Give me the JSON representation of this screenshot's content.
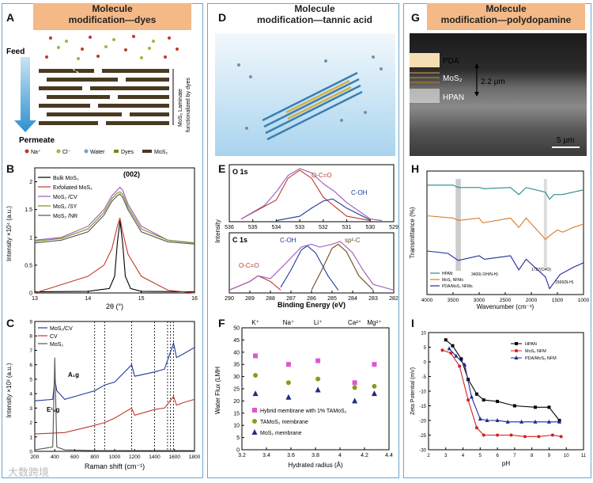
{
  "panels": {
    "A": {
      "letter": "A",
      "title_1": "Molecule",
      "title_2": "modification—dyes",
      "feed": "Feed",
      "permeate": "Permeate",
      "laminate_label_1": "MoS₂ Laminate",
      "laminate_label_2": "functionalized by dyes",
      "legend": [
        "Na⁺",
        "Cl⁻",
        "Water",
        "Dyes",
        "MoS₂"
      ]
    },
    "B": {
      "letter": "B",
      "peak_label": "(002)",
      "ylabel": "Intensity ×10⁴ (a.u.)",
      "xlabel": "2θ (°)",
      "legend": [
        "Bulk MoS₂",
        "Exfoliated MoS₂",
        "MoS₂ /CV",
        "MoS₂ /SY",
        "MoS₂ /NR"
      ]
    },
    "C": {
      "letter": "C",
      "ylabel": "Intensity ×10³ (a.u.)",
      "xlabel": "Raman shift (cm⁻¹)",
      "legend": [
        "MoS₂/CV",
        "CV",
        "MoS₂"
      ],
      "peak1": "E¹₂g",
      "peak2": "A₁g"
    },
    "D": {
      "letter": "D",
      "title_1": "Molecule",
      "title_2": "modification—tannic acid"
    },
    "E": {
      "letter": "E",
      "o1s": "O 1s",
      "c1s": "C 1s",
      "oco": "O-C=O",
      "coh": "C-OH",
      "coh2": "C-OH",
      "sp2": "sp²-C",
      "oco2": "O-C=O",
      "ylabel": "Intensity",
      "xlabel": "Binding Energy (eV)"
    },
    "F": {
      "letter": "F",
      "ylabel": "Water Flux (LMH",
      "xlabel": "Hydrated radius (Å)",
      "ions": [
        "K⁺",
        "Na⁺",
        "Li⁺",
        "Ca²⁺",
        "Mg²⁺"
      ],
      "legend": [
        "Hybrid membrane with 1% TAMoS₂",
        "TAMoS₂ membrane",
        "MoS₂ membrane"
      ]
    },
    "G": {
      "letter": "G",
      "title_1": "Molecule",
      "title_2": "modification—polydopamine",
      "pda": "PDA",
      "mos2": "MoS₂",
      "hpan": "HPAN",
      "thickness": "2.2 μm",
      "scale": "5 μm"
    },
    "H": {
      "letter": "H",
      "ylabel": "Transmittance (%)",
      "xlabel": "Wavenumber (cm⁻¹)",
      "ann1": "3400(-OH/N-H)",
      "ann2": "1727(C=O)",
      "ann3": "1566(N-H)",
      "legend": [
        "HPAN",
        "MoS₂ NFMs",
        "PDA/MoS₂ NFMs"
      ]
    },
    "I": {
      "letter": "I",
      "ylabel": "Zeta Potential (mV)",
      "xlabel": "pH",
      "legend": [
        "HPAN",
        "MoS₂ NFM",
        "PDA/MoS₂ NFM"
      ]
    }
  },
  "watermark": "大数跨境",
  "colors": {
    "header": "#f4b987",
    "border": "#6aa6cf"
  },
  "chart_data": [
    {
      "id": "B",
      "type": "line",
      "xlabel": "2θ (°)",
      "ylabel": "Intensity ×10⁴ (a.u.)",
      "xlim": [
        13,
        16
      ],
      "ylim": [
        0,
        2.25
      ],
      "xticks": [
        13,
        14,
        15,
        16
      ],
      "yticks": [
        0,
        0.5,
        1.0,
        1.5,
        2.0
      ],
      "series": [
        {
          "name": "Bulk MoS₂",
          "color": "#000000",
          "x": [
            13,
            14,
            14.4,
            14.5,
            14.55,
            14.6,
            14.65,
            14.7,
            14.8,
            15,
            16
          ],
          "y": [
            0.02,
            0.03,
            0.08,
            0.3,
            0.9,
            1.3,
            0.9,
            0.3,
            0.08,
            0.03,
            0.02
          ]
        },
        {
          "name": "Exfoliated MoS₂",
          "color": "#c0392b",
          "x": [
            13,
            13.5,
            14,
            14.3,
            14.45,
            14.55,
            14.6,
            14.65,
            14.75,
            15,
            15.5,
            16
          ],
          "y": [
            0.0,
            0.15,
            0.3,
            0.5,
            0.8,
            1.2,
            1.35,
            1.1,
            0.7,
            0.3,
            0.05,
            0.0
          ]
        },
        {
          "name": "MoS₂ /CV",
          "color": "#9b59b6",
          "x": [
            13,
            13.5,
            14,
            14.3,
            14.45,
            14.55,
            14.6,
            14.65,
            14.75,
            15,
            15.5,
            16
          ],
          "y": [
            0.95,
            1.0,
            1.2,
            1.5,
            1.75,
            1.85,
            1.9,
            1.85,
            1.6,
            1.2,
            0.95,
            0.9
          ]
        },
        {
          "name": "MoS₂ /SY",
          "color": "#7f8c1a",
          "x": [
            13,
            13.5,
            14,
            14.3,
            14.45,
            14.55,
            14.6,
            14.65,
            14.75,
            15,
            15.5,
            16
          ],
          "y": [
            0.93,
            0.98,
            1.15,
            1.45,
            1.7,
            1.8,
            1.82,
            1.78,
            1.55,
            1.15,
            0.95,
            0.9
          ]
        },
        {
          "name": "MoS₂ /NR",
          "color": "#555555",
          "x": [
            13,
            13.5,
            14,
            14.3,
            14.45,
            14.55,
            14.6,
            14.65,
            14.75,
            15,
            15.5,
            16
          ],
          "y": [
            0.9,
            0.95,
            1.1,
            1.4,
            1.65,
            1.75,
            1.78,
            1.72,
            1.5,
            1.1,
            0.92,
            0.88
          ]
        }
      ]
    },
    {
      "id": "C",
      "type": "line",
      "xlabel": "Raman shift (cm⁻¹)",
      "ylabel": "Intensity ×10³ (a.u.)",
      "xlim": [
        200,
        1800
      ],
      "ylim": [
        0,
        9
      ],
      "xticks": [
        200,
        400,
        600,
        800,
        1000,
        1200,
        1400,
        1600,
        1800
      ],
      "yticks": [
        0,
        1,
        2,
        3,
        4,
        5,
        6,
        7,
        8,
        9
      ],
      "series": [
        {
          "name": "MoS₂/CV",
          "color": "#1f3b99",
          "x": [
            200,
            380,
            400,
            420,
            500,
            800,
            900,
            1000,
            1170,
            1200,
            1400,
            1500,
            1590,
            1620,
            1700,
            1800
          ],
          "y": [
            3.5,
            3.6,
            5.0,
            4.2,
            3.6,
            4.2,
            4.6,
            4.8,
            6.0,
            5.2,
            5.5,
            5.7,
            7.5,
            6.5,
            6.8,
            7.2
          ]
        },
        {
          "name": "CV",
          "color": "#c0392b",
          "x": [
            200,
            500,
            800,
            900,
            1000,
            1170,
            1200,
            1400,
            1500,
            1590,
            1620,
            1700,
            1800
          ],
          "y": [
            1.2,
            1.3,
            1.8,
            2.0,
            2.3,
            3.0,
            2.5,
            2.9,
            3.0,
            3.8,
            3.2,
            3.4,
            3.6
          ]
        },
        {
          "name": "MoS₂",
          "color": "#555555",
          "x": [
            200,
            380,
            400,
            420,
            500,
            800,
            1200,
            1800
          ],
          "y": [
            0.1,
            0.3,
            6.5,
            0.3,
            0.1,
            0.05,
            0.05,
            0.05
          ]
        }
      ]
    },
    {
      "id": "E-O1s",
      "type": "line",
      "xlim": [
        536,
        529
      ],
      "xticks": [
        536,
        535,
        534,
        533,
        532,
        531,
        530,
        529
      ],
      "series": [
        {
          "name": "O-C=O",
          "color": "#c0392b",
          "x": [
            535.5,
            534,
            533.5,
            533,
            532.5,
            532,
            531,
            530
          ],
          "y": [
            0.05,
            0.4,
            0.8,
            0.95,
            0.8,
            0.45,
            0.1,
            0.02
          ]
        },
        {
          "name": "C-OH",
          "color": "#1f3b99",
          "x": [
            534,
            533,
            532.5,
            532,
            531.6,
            531,
            530
          ],
          "y": [
            0.02,
            0.1,
            0.25,
            0.38,
            0.42,
            0.25,
            0.03
          ]
        },
        {
          "name": "Envelope",
          "color": "#9b59b6",
          "x": [
            535.5,
            534.5,
            534,
            533.5,
            533,
            532.5,
            532,
            531.5,
            531,
            530,
            529.5
          ],
          "y": [
            0.05,
            0.3,
            0.55,
            0.85,
            0.98,
            0.9,
            0.7,
            0.55,
            0.35,
            0.05,
            0.02
          ]
        }
      ]
    },
    {
      "id": "E-C1s",
      "type": "line",
      "xlabel": "Binding Energy (eV)",
      "xlim": [
        290,
        282
      ],
      "xticks": [
        290,
        289,
        288,
        287,
        286,
        285,
        284,
        283,
        282
      ],
      "series": [
        {
          "name": "O-C=O",
          "color": "#c0392b",
          "x": [
            290,
            289,
            288.6,
            288,
            287.5
          ],
          "y": [
            0.05,
            0.2,
            0.3,
            0.2,
            0.05
          ]
        },
        {
          "name": "C-OH",
          "color": "#1f3b99",
          "x": [
            287.5,
            287,
            286.5,
            286.2,
            285.8,
            285.2,
            284.7
          ],
          "y": [
            0.1,
            0.4,
            0.75,
            0.82,
            0.7,
            0.3,
            0.05
          ]
        },
        {
          "name": "sp²-C",
          "color": "#6e4b1a",
          "x": [
            286,
            285.5,
            285,
            284.7,
            284.3,
            283.7,
            283
          ],
          "y": [
            0.05,
            0.4,
            0.78,
            0.85,
            0.72,
            0.3,
            0.05
          ]
        },
        {
          "name": "Envelope",
          "color": "#9b59b6",
          "x": [
            290,
            289,
            288.6,
            288,
            287.3,
            286.5,
            286,
            285.6,
            285,
            284.6,
            284,
            283.5,
            283,
            282
          ],
          "y": [
            0.05,
            0.2,
            0.3,
            0.25,
            0.5,
            0.8,
            0.85,
            0.8,
            0.85,
            0.9,
            0.7,
            0.4,
            0.15,
            0.05
          ]
        }
      ]
    },
    {
      "id": "F",
      "type": "scatter",
      "xlabel": "Hydrated radius (Å)",
      "ylabel": "Water Flux (LMH",
      "xlim": [
        3.2,
        4.4
      ],
      "ylim": [
        0,
        50
      ],
      "xticks": [
        3.2,
        3.4,
        3.6,
        3.8,
        4.0,
        4.2,
        4.4
      ],
      "yticks": [
        0,
        5,
        10,
        15,
        20,
        25,
        30,
        35,
        40,
        45,
        50
      ],
      "series": [
        {
          "name": "Hybrid membrane with 1% TAMoS₂",
          "color": "#e056d0",
          "marker": "square",
          "x": [
            3.31,
            3.58,
            3.82,
            4.12,
            4.28
          ],
          "y": [
            38.5,
            35.0,
            36.5,
            27.5,
            35.0
          ]
        },
        {
          "name": "TAMoS₂ membrane",
          "color": "#8a9a1e",
          "marker": "circle",
          "x": [
            3.31,
            3.58,
            3.82,
            4.12,
            4.28
          ],
          "y": [
            30.5,
            27.5,
            29.0,
            25.5,
            26.0
          ]
        },
        {
          "name": "MoS₂ membrane",
          "color": "#1f2a80",
          "marker": "triangle",
          "x": [
            3.31,
            3.58,
            3.82,
            4.12,
            4.28
          ],
          "y": [
            23.0,
            21.5,
            24.5,
            20.0,
            23.0
          ]
        }
      ]
    },
    {
      "id": "H",
      "type": "line",
      "xlabel": "Wavenumber (cm⁻¹)",
      "ylabel": "Transmittance (%)",
      "xlim": [
        4000,
        1000
      ],
      "xticks": [
        4000,
        3500,
        3000,
        2500,
        2000,
        1500,
        1000
      ],
      "series": [
        {
          "name": "HPAN",
          "color": "#2a8a8a",
          "x": [
            4000,
            3500,
            3400,
            3000,
            2900,
            2400,
            2240,
            2100,
            1730,
            1650,
            1566,
            1400,
            1200,
            1000
          ],
          "y": [
            0.88,
            0.88,
            0.86,
            0.86,
            0.85,
            0.86,
            0.8,
            0.86,
            0.82,
            0.76,
            0.8,
            0.8,
            0.82,
            0.84
          ]
        },
        {
          "name": "MoS₂ NFMs",
          "color": "#d97a2a",
          "x": [
            4000,
            3500,
            3400,
            3000,
            2930,
            2400,
            2240,
            2100,
            1730,
            1650,
            1500,
            1400,
            1200,
            1000
          ],
          "y": [
            0.62,
            0.6,
            0.58,
            0.6,
            0.56,
            0.6,
            0.52,
            0.6,
            0.42,
            0.45,
            0.5,
            0.48,
            0.52,
            0.55
          ]
        },
        {
          "name": "PDA/MoS₂ NFMs",
          "color": "#1f2a99",
          "x": [
            4000,
            3600,
            3400,
            3000,
            2900,
            2400,
            2240,
            2100,
            1730,
            1650,
            1566,
            1450,
            1200,
            1000
          ],
          "y": [
            0.32,
            0.3,
            0.24,
            0.28,
            0.25,
            0.28,
            0.16,
            0.25,
            0.1,
            0.0,
            0.05,
            0.12,
            0.18,
            0.22
          ]
        }
      ]
    },
    {
      "id": "I",
      "type": "line",
      "xlabel": "pH",
      "ylabel": "Zeta Potential (mV)",
      "xlim": [
        2,
        11
      ],
      "ylim": [
        -30,
        10
      ],
      "xticks": [
        2,
        3,
        4,
        5,
        6,
        7,
        8,
        9,
        10,
        11
      ],
      "yticks": [
        -30,
        -25,
        -20,
        -15,
        -10,
        -5,
        0,
        5,
        10
      ],
      "series": [
        {
          "name": "HPAN",
          "color": "#000000",
          "marker": "square",
          "x": [
            3.0,
            3.4,
            3.9,
            4.3,
            4.8,
            5.2,
            6.0,
            7.0,
            8.2,
            9.0,
            9.6
          ],
          "y": [
            7.5,
            5.5,
            1.0,
            -6.0,
            -11.0,
            -13.0,
            -13.5,
            -15.0,
            -15.5,
            -15.5,
            -20.0
          ]
        },
        {
          "name": "MoS₂ NFM",
          "color": "#d42020",
          "marker": "circle",
          "x": [
            2.8,
            3.3,
            3.8,
            4.3,
            4.8,
            5.2,
            6.0,
            6.8,
            7.6,
            8.4,
            9.2,
            9.7
          ],
          "y": [
            4.0,
            3.0,
            -1.5,
            -13.0,
            -22.5,
            -25.0,
            -25.0,
            -25.0,
            -25.5,
            -25.5,
            -25.0,
            -25.5
          ]
        },
        {
          "name": "PDA/MoS₂ NFM",
          "color": "#1f2a99",
          "marker": "triangle",
          "x": [
            3.2,
            3.6,
            4.1,
            4.5,
            5.0,
            5.4,
            6.0,
            6.6,
            7.4,
            8.2,
            9.0,
            9.6
          ],
          "y": [
            4.5,
            2.0,
            -1.0,
            -12.0,
            -19.5,
            -20.0,
            -20.0,
            -20.5,
            -20.5,
            -20.5,
            -20.5,
            -20.5
          ]
        }
      ]
    }
  ]
}
